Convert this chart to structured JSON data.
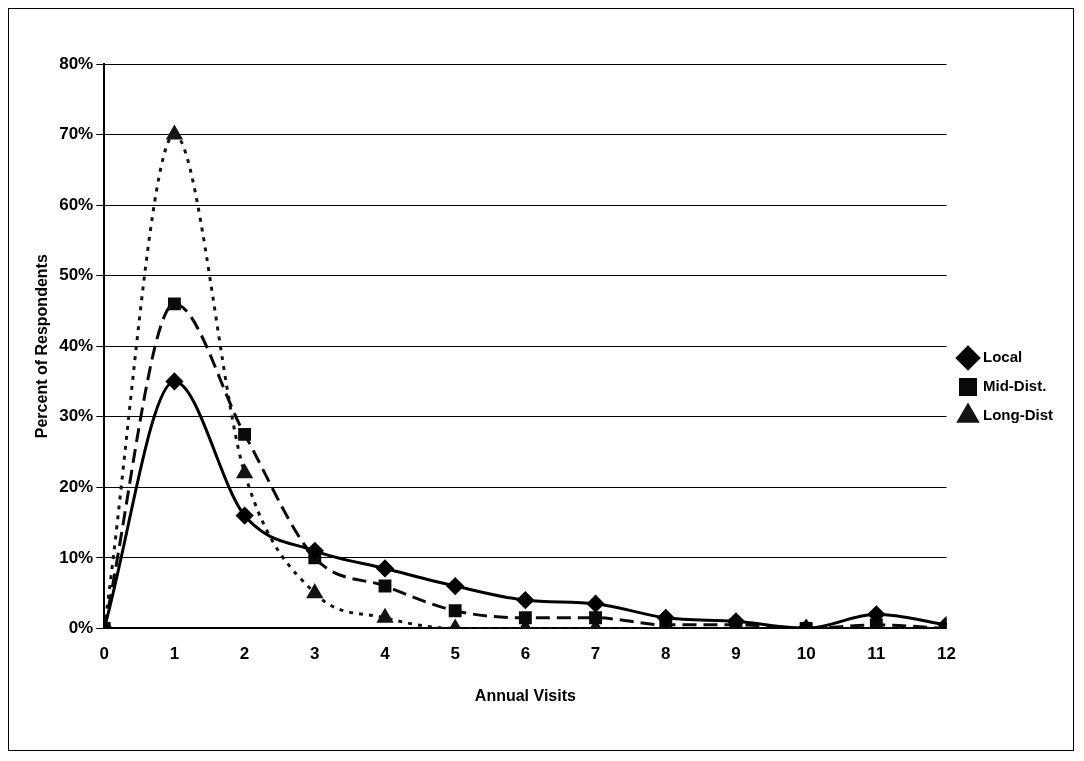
{
  "chart_data": {
    "type": "line",
    "xlabel": "Annual Visits",
    "ylabel": "Percent of Respondents",
    "x": [
      0,
      1,
      2,
      3,
      4,
      5,
      6,
      7,
      8,
      9,
      10,
      11,
      12
    ],
    "xlim": [
      0,
      12
    ],
    "xticks": [
      0,
      1,
      2,
      3,
      4,
      5,
      6,
      7,
      8,
      9,
      10,
      11,
      12
    ],
    "series": [
      {
        "name": "Local",
        "color": "#000000",
        "marker": "diamond",
        "line_style": "solid",
        "values": [
          0,
          35,
          16,
          11,
          8.5,
          6,
          4,
          3.5,
          1.5,
          1,
          0,
          2,
          0.5
        ]
      },
      {
        "name": "Mid-Dist.",
        "color": "#0a0a0a",
        "marker": "square",
        "line_style": "dashed",
        "values": [
          0,
          46,
          27.5,
          10,
          6,
          2.5,
          1.5,
          1.5,
          0.5,
          0.5,
          0,
          0.5,
          0
        ]
      },
      {
        "name": "Long-Dist",
        "color": "#141414",
        "marker": "triangle",
        "line_style": "dotted",
        "values": [
          0,
          70,
          22,
          5,
          1.5,
          0,
          0,
          0,
          0,
          0,
          0,
          0,
          0
        ]
      }
    ],
    "ylim": [
      0,
      80
    ],
    "yticks": [
      {
        "value": 0,
        "label": "0%"
      },
      {
        "value": 10,
        "label": "10%"
      },
      {
        "value": 20,
        "label": "20%"
      },
      {
        "value": 30,
        "label": "30%"
      },
      {
        "value": 40,
        "label": "40%"
      },
      {
        "value": 50,
        "label": "50%"
      },
      {
        "value": 60,
        "label": "60%"
      },
      {
        "value": 70,
        "label": "70%"
      },
      {
        "value": 80,
        "label": "80%"
      }
    ],
    "grid": "y",
    "legend": "right"
  }
}
